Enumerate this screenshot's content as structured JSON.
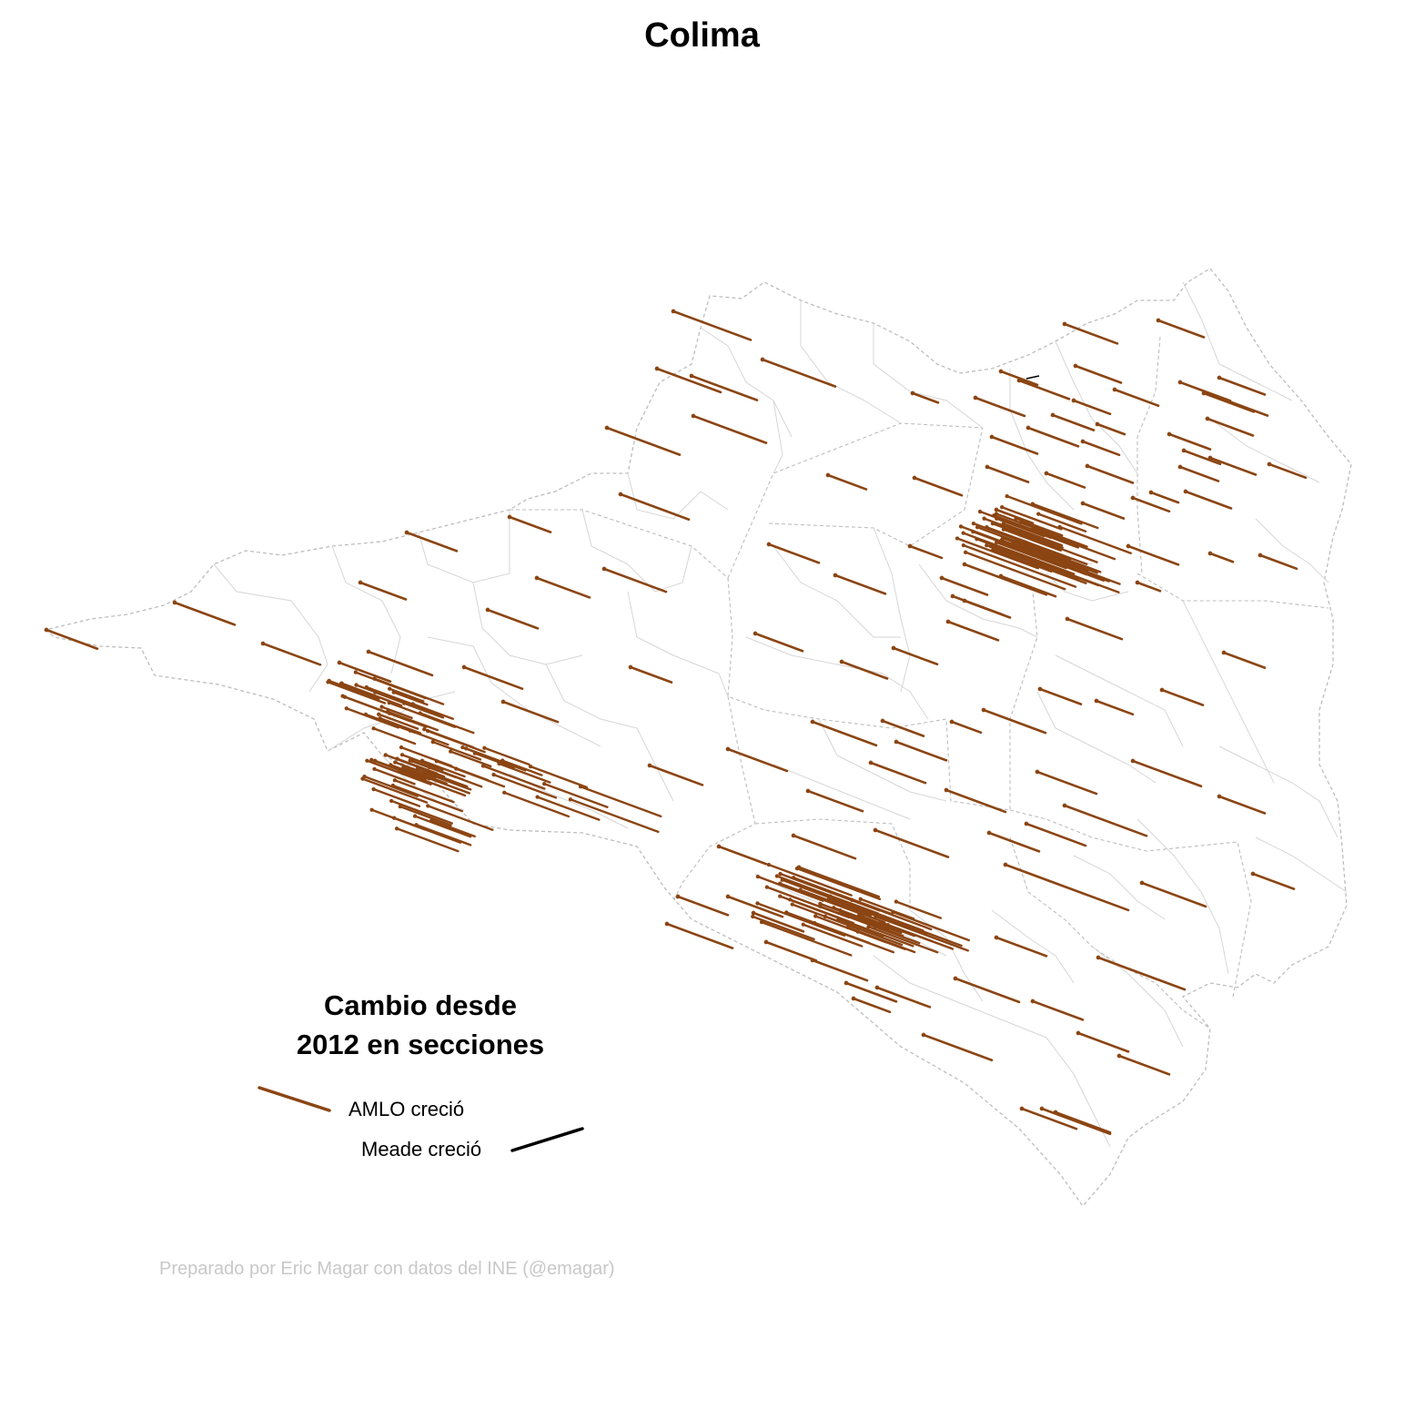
{
  "title": "Colima",
  "legend": {
    "title_line1": "Cambio desde",
    "title_line2": "2012 en secciones",
    "amlo_label": "AMLO creció",
    "meade_label": "Meade creció",
    "amlo_color": "#8B4513",
    "meade_color": "#000000"
  },
  "credit": "Preparado por Eric Magar con datos del INE (@emagar)",
  "map": {
    "state": "Colima",
    "boundary_color": "#bdbdbd",
    "municipal_border_style": "dashed",
    "section_border_color": "#d3d3d3"
  }
}
